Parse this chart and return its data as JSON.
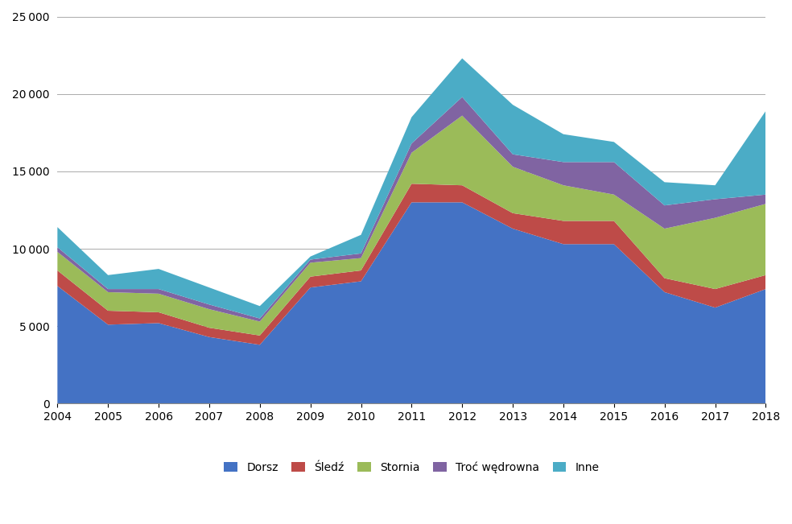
{
  "years": [
    2004,
    2005,
    2006,
    2007,
    2008,
    2009,
    2010,
    2011,
    2012,
    2013,
    2014,
    2015,
    2016,
    2017,
    2018
  ],
  "dorsz": [
    7600,
    5100,
    5200,
    4300,
    3800,
    7500,
    7900,
    13000,
    13000,
    11300,
    10300,
    10300,
    7200,
    6200,
    7400
  ],
  "sledz": [
    1000,
    900,
    700,
    600,
    600,
    700,
    700,
    1200,
    1100,
    1000,
    1500,
    1500,
    900,
    1200,
    900
  ],
  "stornia": [
    1200,
    1200,
    1200,
    1200,
    900,
    900,
    800,
    2000,
    4500,
    3000,
    2300,
    1700,
    3200,
    4600,
    4600
  ],
  "troc_wedrowna": [
    300,
    200,
    300,
    300,
    200,
    200,
    300,
    600,
    1200,
    800,
    1500,
    2100,
    1500,
    1200,
    600
  ],
  "inne": [
    1300,
    900,
    1300,
    1100,
    800,
    200,
    1200,
    1700,
    2500,
    3200,
    1800,
    1300,
    1500,
    900,
    5400
  ],
  "colors": {
    "dorsz": "#4472C4",
    "sledz": "#BE4B48",
    "stornia": "#9BBB59",
    "troc_wedrowna": "#8064A2",
    "inne": "#4BACC6"
  },
  "legend_labels": [
    "Dorsz",
    "Śledź",
    "Stornia",
    "Troć wędrowna",
    "Inne"
  ],
  "ylim": [
    0,
    25000
  ],
  "yticks": [
    0,
    5000,
    10000,
    15000,
    20000,
    25000
  ],
  "background_color": "#FFFFFF",
  "grid_color": "#AAAAAA"
}
